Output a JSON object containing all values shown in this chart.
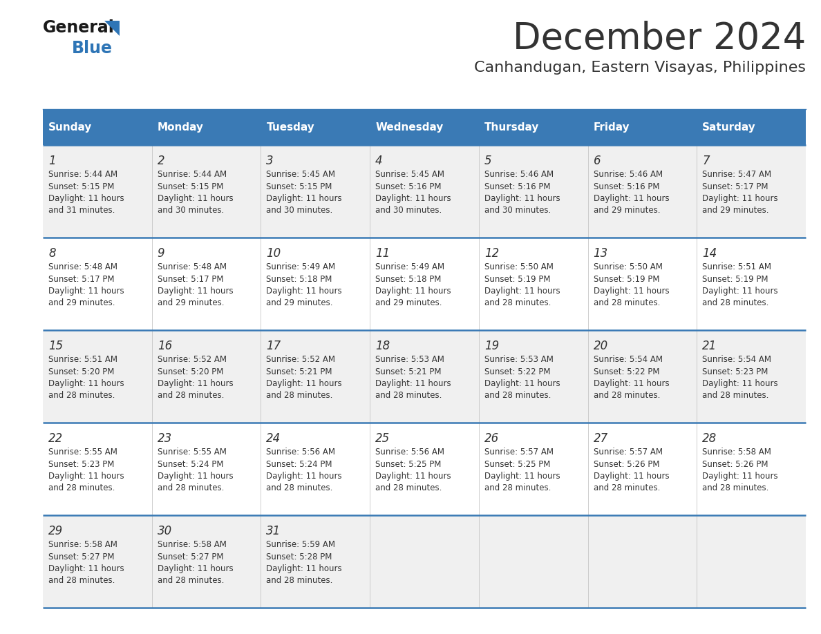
{
  "title": "December 2024",
  "subtitle": "Canhandugan, Eastern Visayas, Philippines",
  "header_bg_color": "#3A7AB5",
  "header_text_color": "#FFFFFF",
  "row_bg_even": "#F0F0F0",
  "row_bg_odd": "#FFFFFF",
  "border_color": "#3A7AB5",
  "text_color": "#333333",
  "days_of_week": [
    "Sunday",
    "Monday",
    "Tuesday",
    "Wednesday",
    "Thursday",
    "Friday",
    "Saturday"
  ],
  "calendar_data": [
    [
      {
        "day": 1,
        "sunrise": "5:44 AM",
        "sunset": "5:15 PM",
        "daylight_min": "31"
      },
      {
        "day": 2,
        "sunrise": "5:44 AM",
        "sunset": "5:15 PM",
        "daylight_min": "30"
      },
      {
        "day": 3,
        "sunrise": "5:45 AM",
        "sunset": "5:15 PM",
        "daylight_min": "30"
      },
      {
        "day": 4,
        "sunrise": "5:45 AM",
        "sunset": "5:16 PM",
        "daylight_min": "30"
      },
      {
        "day": 5,
        "sunrise": "5:46 AM",
        "sunset": "5:16 PM",
        "daylight_min": "30"
      },
      {
        "day": 6,
        "sunrise": "5:46 AM",
        "sunset": "5:16 PM",
        "daylight_min": "29"
      },
      {
        "day": 7,
        "sunrise": "5:47 AM",
        "sunset": "5:17 PM",
        "daylight_min": "29"
      }
    ],
    [
      {
        "day": 8,
        "sunrise": "5:48 AM",
        "sunset": "5:17 PM",
        "daylight_min": "29"
      },
      {
        "day": 9,
        "sunrise": "5:48 AM",
        "sunset": "5:17 PM",
        "daylight_min": "29"
      },
      {
        "day": 10,
        "sunrise": "5:49 AM",
        "sunset": "5:18 PM",
        "daylight_min": "29"
      },
      {
        "day": 11,
        "sunrise": "5:49 AM",
        "sunset": "5:18 PM",
        "daylight_min": "29"
      },
      {
        "day": 12,
        "sunrise": "5:50 AM",
        "sunset": "5:19 PM",
        "daylight_min": "28"
      },
      {
        "day": 13,
        "sunrise": "5:50 AM",
        "sunset": "5:19 PM",
        "daylight_min": "28"
      },
      {
        "day": 14,
        "sunrise": "5:51 AM",
        "sunset": "5:19 PM",
        "daylight_min": "28"
      }
    ],
    [
      {
        "day": 15,
        "sunrise": "5:51 AM",
        "sunset": "5:20 PM",
        "daylight_min": "28"
      },
      {
        "day": 16,
        "sunrise": "5:52 AM",
        "sunset": "5:20 PM",
        "daylight_min": "28"
      },
      {
        "day": 17,
        "sunrise": "5:52 AM",
        "sunset": "5:21 PM",
        "daylight_min": "28"
      },
      {
        "day": 18,
        "sunrise": "5:53 AM",
        "sunset": "5:21 PM",
        "daylight_min": "28"
      },
      {
        "day": 19,
        "sunrise": "5:53 AM",
        "sunset": "5:22 PM",
        "daylight_min": "28"
      },
      {
        "day": 20,
        "sunrise": "5:54 AM",
        "sunset": "5:22 PM",
        "daylight_min": "28"
      },
      {
        "day": 21,
        "sunrise": "5:54 AM",
        "sunset": "5:23 PM",
        "daylight_min": "28"
      }
    ],
    [
      {
        "day": 22,
        "sunrise": "5:55 AM",
        "sunset": "5:23 PM",
        "daylight_min": "28"
      },
      {
        "day": 23,
        "sunrise": "5:55 AM",
        "sunset": "5:24 PM",
        "daylight_min": "28"
      },
      {
        "day": 24,
        "sunrise": "5:56 AM",
        "sunset": "5:24 PM",
        "daylight_min": "28"
      },
      {
        "day": 25,
        "sunrise": "5:56 AM",
        "sunset": "5:25 PM",
        "daylight_min": "28"
      },
      {
        "day": 26,
        "sunrise": "5:57 AM",
        "sunset": "5:25 PM",
        "daylight_min": "28"
      },
      {
        "day": 27,
        "sunrise": "5:57 AM",
        "sunset": "5:26 PM",
        "daylight_min": "28"
      },
      {
        "day": 28,
        "sunrise": "5:58 AM",
        "sunset": "5:26 PM",
        "daylight_min": "28"
      }
    ],
    [
      {
        "day": 29,
        "sunrise": "5:58 AM",
        "sunset": "5:27 PM",
        "daylight_min": "28"
      },
      {
        "day": 30,
        "sunrise": "5:58 AM",
        "sunset": "5:27 PM",
        "daylight_min": "28"
      },
      {
        "day": 31,
        "sunrise": "5:59 AM",
        "sunset": "5:28 PM",
        "daylight_min": "28"
      },
      null,
      null,
      null,
      null
    ]
  ],
  "logo_color_general": "#1a1a1a",
  "logo_color_blue": "#2E75B6",
  "logo_triangle_color": "#2E75B6",
  "title_fontsize": 38,
  "subtitle_fontsize": 16,
  "header_fontsize": 11,
  "day_number_fontsize": 12,
  "cell_text_fontsize": 8.5
}
